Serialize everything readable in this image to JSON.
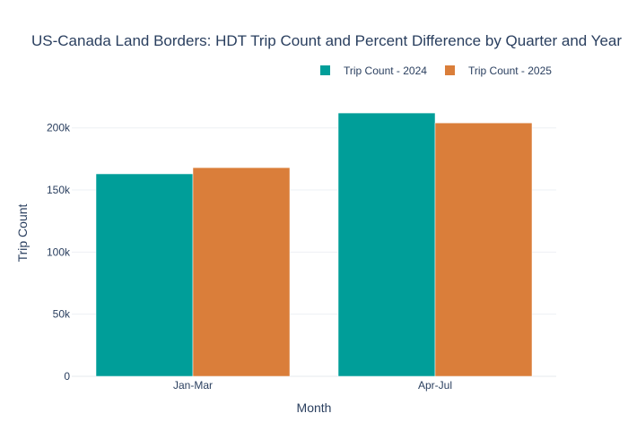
{
  "chart_data": {
    "type": "bar",
    "title": "US-Canada Land Borders: HDT Trip Count and Percent Difference by Quarter and Year",
    "xlabel": "Month",
    "ylabel": "Trip Count",
    "categories": [
      "Jan-Mar",
      "Apr-Jul"
    ],
    "series": [
      {
        "name": "Trip Count - 2024",
        "color": "#009E99",
        "values": [
          163000,
          212000
        ]
      },
      {
        "name": "Trip Count - 2025",
        "color": "#DA7E3A",
        "values": [
          168000,
          204000
        ]
      }
    ],
    "ylim": [
      0,
      220000
    ],
    "yticks": [
      0,
      50000,
      100000,
      150000,
      200000
    ],
    "ytick_labels": [
      "0",
      "50k",
      "100k",
      "150k",
      "200k"
    ],
    "grid": true,
    "legend_position": "top-right"
  }
}
